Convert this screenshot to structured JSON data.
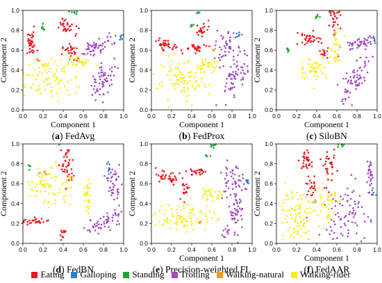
{
  "figure": {
    "legend": [
      {
        "label": "Eating",
        "color": "#e8191f"
      },
      {
        "label": "Galloping",
        "color": "#2f82c8"
      },
      {
        "label": "Standing",
        "color": "#1ea532"
      },
      {
        "label": "Trotting",
        "color": "#a24ac0"
      },
      {
        "label": "Walking-natural",
        "color": "#f4962b"
      },
      {
        "label": "Walking-rider",
        "color": "#f5ee1c"
      }
    ]
  },
  "chart_data": [
    {
      "type": "scatter",
      "panel": "(a)",
      "caption": "FedAvg",
      "xlabel": "Component 1",
      "ylabel": "Component 2",
      "xlim": [
        0,
        1
      ],
      "ylim": [
        0,
        1
      ],
      "xticks": [
        "0.0",
        "0.2",
        "0.4",
        "0.6",
        "0.8",
        "1.0"
      ],
      "yticks": [
        "0.0",
        "0.2",
        "0.4",
        "0.6",
        "0.8",
        "1.0"
      ],
      "clusters": [
        {
          "class": "Eating",
          "cx": 0.08,
          "cy": 0.66,
          "sx": 0.03,
          "sy": 0.06,
          "r": 0,
          "n": 36
        },
        {
          "class": "Eating",
          "cx": 0.44,
          "cy": 0.83,
          "sx": 0.05,
          "sy": 0.03,
          "r": -35,
          "n": 32
        },
        {
          "class": "Eating",
          "cx": 0.47,
          "cy": 0.58,
          "sx": 0.04,
          "sy": 0.04,
          "r": 0,
          "n": 28
        },
        {
          "class": "Galloping",
          "cx": 0.97,
          "cy": 0.73,
          "sx": 0.01,
          "sy": 0.02,
          "r": 0,
          "n": 6
        },
        {
          "class": "Standing",
          "cx": 0.51,
          "cy": 0.98,
          "sx": 0.02,
          "sy": 0.01,
          "r": 0,
          "n": 8
        },
        {
          "class": "Standing",
          "cx": 0.2,
          "cy": 0.83,
          "sx": 0.01,
          "sy": 0.02,
          "r": 0,
          "n": 6
        },
        {
          "class": "Trotting",
          "cx": 0.76,
          "cy": 0.65,
          "sx": 0.1,
          "sy": 0.035,
          "r": 25,
          "n": 55
        },
        {
          "class": "Trotting",
          "cx": 0.8,
          "cy": 0.32,
          "sx": 0.05,
          "sy": 0.12,
          "r": -20,
          "n": 60
        },
        {
          "class": "Walking-rider",
          "cx": 0.23,
          "cy": 0.32,
          "sx": 0.14,
          "sy": 0.1,
          "r": -20,
          "n": 95
        },
        {
          "class": "Walking-rider",
          "cx": 0.55,
          "cy": 0.48,
          "sx": 0.07,
          "sy": 0.03,
          "r": 0,
          "n": 35
        },
        {
          "class": "Walking-natural",
          "cx": 0.16,
          "cy": 0.5,
          "sx": 0.02,
          "sy": 0.01,
          "r": 0,
          "n": 6
        }
      ]
    },
    {
      "type": "scatter",
      "panel": "(b)",
      "caption": "FedProx",
      "xlabel": "Component 1",
      "ylabel": "Component 2",
      "xlim": [
        0,
        1
      ],
      "ylim": [
        0,
        1
      ],
      "xticks": [
        "0.0",
        "0.2",
        "0.4",
        "0.6",
        "0.8",
        "1.0"
      ],
      "yticks": [
        "0.0",
        "0.2",
        "0.4",
        "0.6",
        "0.8",
        "1.0"
      ],
      "clusters": [
        {
          "class": "Eating",
          "cx": 0.14,
          "cy": 0.66,
          "sx": 0.07,
          "sy": 0.025,
          "r": -20,
          "n": 35
        },
        {
          "class": "Eating",
          "cx": 0.43,
          "cy": 0.62,
          "sx": 0.05,
          "sy": 0.02,
          "r": 0,
          "n": 28
        },
        {
          "class": "Eating",
          "cx": 0.5,
          "cy": 0.8,
          "sx": 0.03,
          "sy": 0.04,
          "r": -40,
          "n": 22
        },
        {
          "class": "Galloping",
          "cx": 0.86,
          "cy": 0.75,
          "sx": 0.015,
          "sy": 0.02,
          "r": 0,
          "n": 8
        },
        {
          "class": "Standing",
          "cx": 0.4,
          "cy": 0.85,
          "sx": 0.015,
          "sy": 0.01,
          "r": 0,
          "n": 6
        },
        {
          "class": "Standing",
          "cx": 0.46,
          "cy": 0.98,
          "sx": 0.015,
          "sy": 0.01,
          "r": 0,
          "n": 6
        },
        {
          "class": "Trotting",
          "cx": 0.74,
          "cy": 0.62,
          "sx": 0.05,
          "sy": 0.08,
          "r": 0,
          "n": 45
        },
        {
          "class": "Trotting",
          "cx": 0.85,
          "cy": 0.35,
          "sx": 0.05,
          "sy": 0.12,
          "r": -25,
          "n": 60
        },
        {
          "class": "Walking-rider",
          "cx": 0.3,
          "cy": 0.28,
          "sx": 0.13,
          "sy": 0.1,
          "r": 0,
          "n": 95
        },
        {
          "class": "Walking-rider",
          "cx": 0.55,
          "cy": 0.45,
          "sx": 0.05,
          "sy": 0.03,
          "r": 0,
          "n": 30
        },
        {
          "class": "Walking-natural",
          "cx": 0.62,
          "cy": 0.6,
          "sx": 0.01,
          "sy": 0.01,
          "r": 0,
          "n": 4
        }
      ]
    },
    {
      "type": "scatter",
      "panel": "(c)",
      "caption": "SiloBN",
      "xlabel": "Component 1",
      "ylabel": "Component 2",
      "xlim": [
        0,
        1
      ],
      "ylim": [
        0,
        1
      ],
      "xticks": [
        "0.0",
        "0.2",
        "0.4",
        "0.6",
        "0.8",
        "1.0"
      ],
      "yticks": [
        "0.0",
        "0.2",
        "0.4",
        "0.6",
        "0.8",
        "1.0"
      ],
      "clusters": [
        {
          "class": "Eating",
          "cx": 0.33,
          "cy": 0.72,
          "sx": 0.06,
          "sy": 0.04,
          "r": -20,
          "n": 35
        },
        {
          "class": "Eating",
          "cx": 0.58,
          "cy": 0.92,
          "sx": 0.03,
          "sy": 0.05,
          "r": 0,
          "n": 28
        },
        {
          "class": "Eating",
          "cx": 0.48,
          "cy": 0.57,
          "sx": 0.02,
          "sy": 0.03,
          "r": 0,
          "n": 14
        },
        {
          "class": "Galloping",
          "cx": 0.97,
          "cy": 0.7,
          "sx": 0.01,
          "sy": 0.02,
          "r": 0,
          "n": 6
        },
        {
          "class": "Standing",
          "cx": 0.13,
          "cy": 0.6,
          "sx": 0.02,
          "sy": 0.01,
          "r": 0,
          "n": 6
        },
        {
          "class": "Standing",
          "cx": 0.4,
          "cy": 0.93,
          "sx": 0.015,
          "sy": 0.015,
          "r": 0,
          "n": 6
        },
        {
          "class": "Trotting",
          "cx": 0.82,
          "cy": 0.67,
          "sx": 0.1,
          "sy": 0.03,
          "r": 20,
          "n": 45
        },
        {
          "class": "Trotting",
          "cx": 0.8,
          "cy": 0.33,
          "sx": 0.05,
          "sy": 0.15,
          "r": -30,
          "n": 65
        },
        {
          "class": "Walking-rider",
          "cx": 0.37,
          "cy": 0.42,
          "sx": 0.07,
          "sy": 0.06,
          "r": 0,
          "n": 50
        },
        {
          "class": "Walking-rider",
          "cx": 0.6,
          "cy": 0.6,
          "sx": 0.03,
          "sy": 0.08,
          "r": 0,
          "n": 35
        },
        {
          "class": "Walking-natural",
          "cx": 0.58,
          "cy": 0.76,
          "sx": 0.01,
          "sy": 0.01,
          "r": 0,
          "n": 4
        }
      ]
    },
    {
      "type": "scatter",
      "panel": "(d)",
      "caption": "FedBN",
      "xlabel": "",
      "ylabel": "Component 2",
      "xlim": [
        0,
        1
      ],
      "ylim": [
        0,
        1
      ],
      "xticks": [
        "0.0",
        "0.2",
        "0.4",
        "0.6",
        "0.8",
        "1.0"
      ],
      "yticks": [
        "0.0",
        "0.2",
        "0.4",
        "0.6",
        "0.8",
        "1.0"
      ],
      "clusters": [
        {
          "class": "Eating",
          "cx": 0.44,
          "cy": 0.78,
          "sx": 0.03,
          "sy": 0.1,
          "r": 0,
          "n": 38
        },
        {
          "class": "Eating",
          "cx": 0.13,
          "cy": 0.22,
          "sx": 0.08,
          "sy": 0.02,
          "r": 0,
          "n": 30
        },
        {
          "class": "Eating",
          "cx": 0.4,
          "cy": 0.09,
          "sx": 0.015,
          "sy": 0.03,
          "r": 0,
          "n": 10
        },
        {
          "class": "Galloping",
          "cx": 0.85,
          "cy": 0.75,
          "sx": 0.015,
          "sy": 0.025,
          "r": 0,
          "n": 8
        },
        {
          "class": "Standing",
          "cx": 0.36,
          "cy": 1.0,
          "sx": 0.02,
          "sy": 0.01,
          "r": 0,
          "n": 6
        },
        {
          "class": "Standing",
          "cx": 0.07,
          "cy": 0.78,
          "sx": 0.01,
          "sy": 0.015,
          "r": 0,
          "n": 5
        },
        {
          "class": "Trotting",
          "cx": 0.9,
          "cy": 0.6,
          "sx": 0.03,
          "sy": 0.09,
          "r": 0,
          "n": 40
        },
        {
          "class": "Trotting",
          "cx": 0.82,
          "cy": 0.22,
          "sx": 0.12,
          "sy": 0.04,
          "r": 25,
          "n": 55
        },
        {
          "class": "Walking-rider",
          "cx": 0.25,
          "cy": 0.57,
          "sx": 0.12,
          "sy": 0.09,
          "r": -25,
          "n": 80
        },
        {
          "class": "Walking-rider",
          "cx": 0.64,
          "cy": 0.48,
          "sx": 0.025,
          "sy": 0.09,
          "r": 0,
          "n": 30
        },
        {
          "class": "Walking-natural",
          "cx": 0.22,
          "cy": 0.7,
          "sx": 0.02,
          "sy": 0.01,
          "r": 0,
          "n": 6
        }
      ]
    },
    {
      "type": "scatter",
      "panel": "(e)",
      "caption": "Precision-weighted FL",
      "xlabel": "Component 1",
      "ylabel": "Component 2",
      "xlim": [
        0,
        1
      ],
      "ylim": [
        0,
        1
      ],
      "xticks": [
        "0.0",
        "0.2",
        "0.4",
        "0.6",
        "0.8",
        "1.0"
      ],
      "yticks": [
        "0.0",
        "0.2",
        "0.4",
        "0.6",
        "0.8",
        "1.0"
      ],
      "clusters": [
        {
          "class": "Eating",
          "cx": 0.16,
          "cy": 0.65,
          "sx": 0.07,
          "sy": 0.03,
          "r": -25,
          "n": 35
        },
        {
          "class": "Eating",
          "cx": 0.46,
          "cy": 0.72,
          "sx": 0.05,
          "sy": 0.02,
          "r": 0,
          "n": 25
        },
        {
          "class": "Eating",
          "cx": 0.33,
          "cy": 0.55,
          "sx": 0.02,
          "sy": 0.06,
          "r": 0,
          "n": 18
        },
        {
          "class": "Galloping",
          "cx": 0.95,
          "cy": 0.62,
          "sx": 0.015,
          "sy": 0.02,
          "r": 0,
          "n": 8
        },
        {
          "class": "Standing",
          "cx": 0.6,
          "cy": 0.98,
          "sx": 0.02,
          "sy": 0.01,
          "r": 0,
          "n": 6
        },
        {
          "class": "Standing",
          "cx": 0.55,
          "cy": 0.88,
          "sx": 0.01,
          "sy": 0.01,
          "r": 0,
          "n": 4
        },
        {
          "class": "Trotting",
          "cx": 0.8,
          "cy": 0.62,
          "sx": 0.06,
          "sy": 0.09,
          "r": 0,
          "n": 45
        },
        {
          "class": "Trotting",
          "cx": 0.83,
          "cy": 0.28,
          "sx": 0.05,
          "sy": 0.12,
          "r": -20,
          "n": 60
        },
        {
          "class": "Walking-rider",
          "cx": 0.33,
          "cy": 0.27,
          "sx": 0.15,
          "sy": 0.07,
          "r": 0,
          "n": 90
        },
        {
          "class": "Walking-rider",
          "cx": 0.6,
          "cy": 0.5,
          "sx": 0.05,
          "sy": 0.04,
          "r": 0,
          "n": 30
        },
        {
          "class": "Walking-natural",
          "cx": 0.48,
          "cy": 0.22,
          "sx": 0.01,
          "sy": 0.01,
          "r": 0,
          "n": 4
        }
      ]
    },
    {
      "type": "scatter",
      "panel": "(f)",
      "caption": "FedAAR",
      "xlabel": "Component 1",
      "ylabel": "Component 2",
      "xlim": [
        0,
        1
      ],
      "ylim": [
        0,
        1
      ],
      "xticks": [
        "0.0",
        "0.2",
        "0.4",
        "0.6",
        "0.8",
        "1.0"
      ],
      "yticks": [
        "0.0",
        "0.2",
        "0.4",
        "0.6",
        "0.8",
        "1.0"
      ],
      "clusters": [
        {
          "class": "Eating",
          "cx": 0.3,
          "cy": 0.83,
          "sx": 0.04,
          "sy": 0.05,
          "r": 0,
          "n": 30
        },
        {
          "class": "Eating",
          "cx": 0.53,
          "cy": 0.75,
          "sx": 0.03,
          "sy": 0.08,
          "r": 0,
          "n": 30
        },
        {
          "class": "Eating",
          "cx": 0.35,
          "cy": 0.55,
          "sx": 0.03,
          "sy": 0.05,
          "r": 0,
          "n": 20
        },
        {
          "class": "Galloping",
          "cx": 0.95,
          "cy": 0.52,
          "sx": 0.01,
          "sy": 0.03,
          "r": 0,
          "n": 6
        },
        {
          "class": "Standing",
          "cx": 0.65,
          "cy": 0.98,
          "sx": 0.02,
          "sy": 0.01,
          "r": 0,
          "n": 6
        },
        {
          "class": "Trotting",
          "cx": 0.93,
          "cy": 0.7,
          "sx": 0.02,
          "sy": 0.08,
          "r": 0,
          "n": 25
        },
        {
          "class": "Trotting",
          "cx": 0.7,
          "cy": 0.3,
          "sx": 0.12,
          "sy": 0.15,
          "r": -15,
          "n": 80
        },
        {
          "class": "Walking-rider",
          "cx": 0.2,
          "cy": 0.3,
          "sx": 0.1,
          "sy": 0.13,
          "r": 0,
          "n": 100
        },
        {
          "class": "Walking-rider",
          "cx": 0.5,
          "cy": 0.45,
          "sx": 0.05,
          "sy": 0.12,
          "r": 0,
          "n": 40
        },
        {
          "class": "Walking-natural",
          "cx": 0.38,
          "cy": 0.42,
          "sx": 0.01,
          "sy": 0.01,
          "r": 0,
          "n": 4
        }
      ]
    }
  ]
}
